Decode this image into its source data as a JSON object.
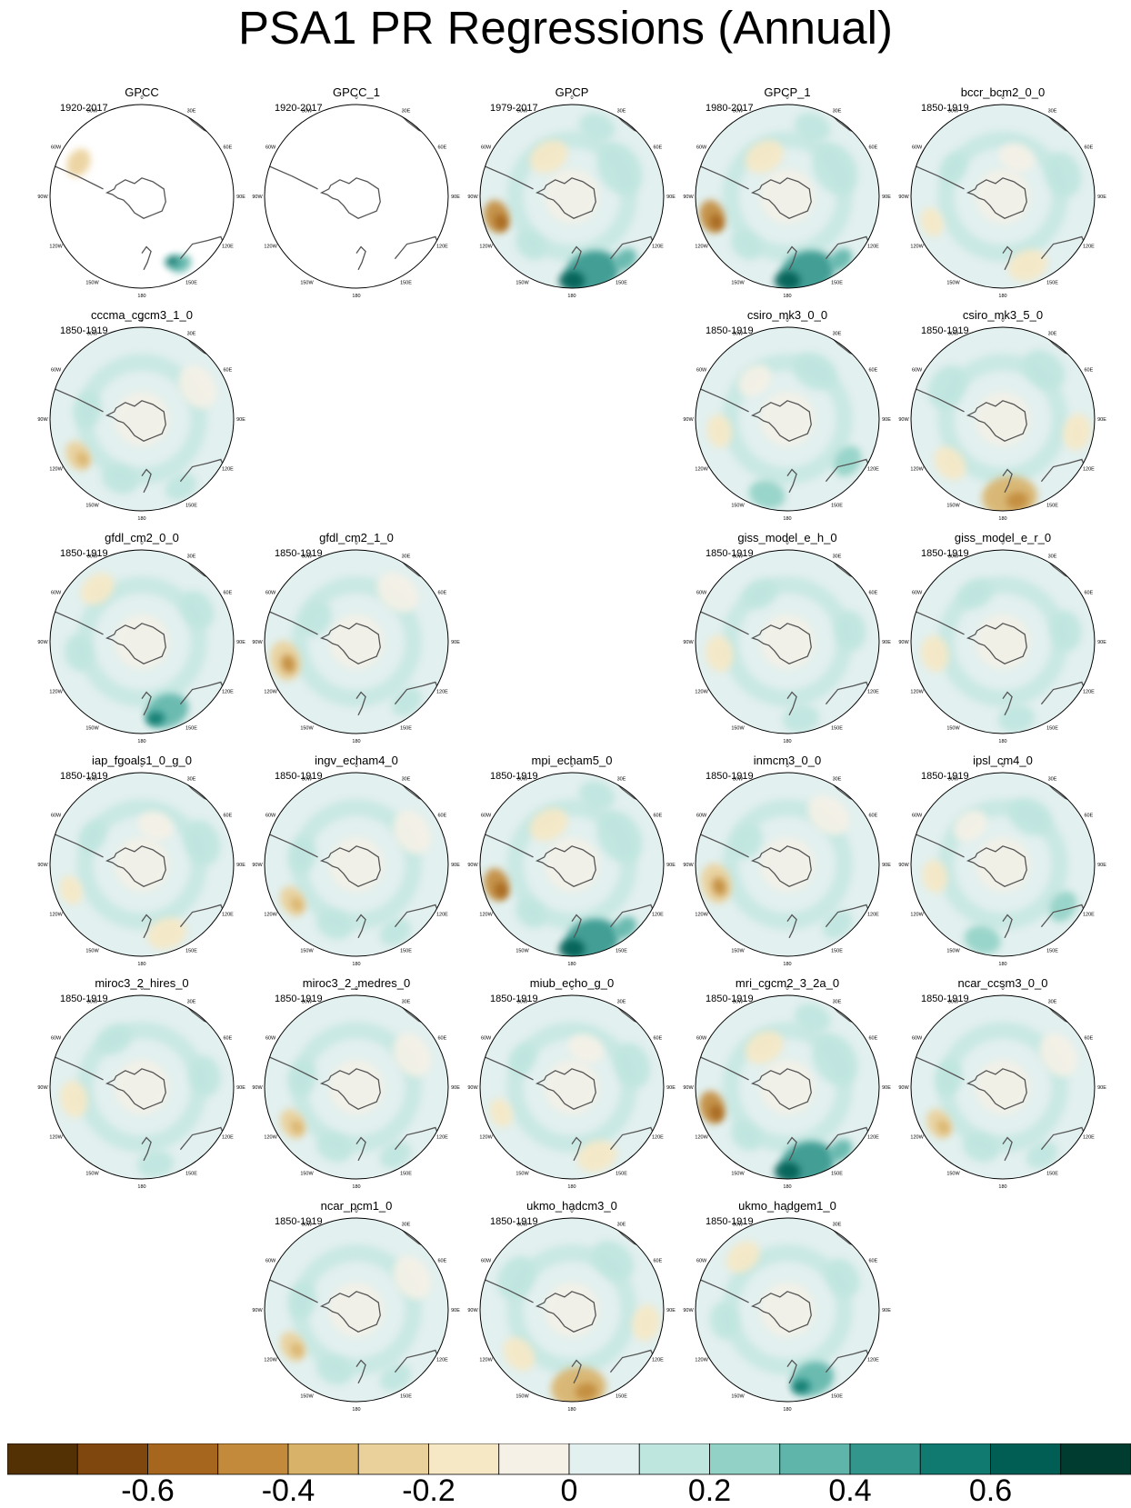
{
  "title": "PSA1 PR Regressions (Annual)",
  "chart_data": {
    "type": "heatmap",
    "title": "PSA1 PR Regressions (Annual)",
    "projection": "south-polar stereographic",
    "lon_labels": [
      "0",
      "30E",
      "60E",
      "90E",
      "120E",
      "150E",
      "180",
      "150W",
      "120W",
      "90W",
      "60W",
      "30W"
    ],
    "colorbar": {
      "ticks": [
        -0.6,
        -0.4,
        -0.2,
        0,
        0.2,
        0.4,
        0.6
      ],
      "tick_labels": [
        "-0.6",
        "-0.4",
        "-0.2",
        "0",
        "0.2",
        "0.4",
        "0.6"
      ],
      "range": [
        -0.8,
        0.8
      ],
      "colors": [
        "#543005",
        "#7f470e",
        "#a6661d",
        "#c28a3a",
        "#d9b26a",
        "#ead09a",
        "#f6e8c5",
        "#f5f1e6",
        "#e2f0ef",
        "#bfe5df",
        "#92d2c6",
        "#5fb5aa",
        "#32968c",
        "#117a70",
        "#005e55",
        "#003c30"
      ]
    },
    "panels": [
      {
        "name": "GPCC",
        "period": "1920-2017",
        "row": 0,
        "col": 0,
        "masked": true,
        "pattern": "gpcc"
      },
      {
        "name": "GPCC_1",
        "period": "1920-2017",
        "row": 0,
        "col": 1,
        "masked": true,
        "pattern": "none"
      },
      {
        "name": "GPCP",
        "period": "1979-2017",
        "row": 0,
        "col": 2,
        "masked": false,
        "pattern": "strong-psa"
      },
      {
        "name": "GPCP_1",
        "period": "1980-2017",
        "row": 0,
        "col": 3,
        "masked": false,
        "pattern": "strong-psa"
      },
      {
        "name": "bccr_bcm2_0_0",
        "period": "1850-1919",
        "row": 0,
        "col": 4,
        "masked": false,
        "pattern": "weak"
      },
      {
        "name": "cccma_cgcm3_1_0",
        "period": "1850-1919",
        "row": 1,
        "col": 0,
        "masked": false,
        "pattern": "weak-west"
      },
      {
        "name": "csiro_mk3_0_0",
        "period": "1850-1919",
        "row": 1,
        "col": 3,
        "masked": false,
        "pattern": "weak-south"
      },
      {
        "name": "csiro_mk3_5_0",
        "period": "1850-1919",
        "row": 1,
        "col": 4,
        "masked": false,
        "pattern": "dry-south"
      },
      {
        "name": "gfdl_cm2_0_0",
        "period": "1850-1919",
        "row": 2,
        "col": 0,
        "masked": false,
        "pattern": "wet-south"
      },
      {
        "name": "gfdl_cm2_1_0",
        "period": "1850-1919",
        "row": 2,
        "col": 1,
        "masked": false,
        "pattern": "dry-west"
      },
      {
        "name": "giss_model_e_h_0",
        "period": "1850-1919",
        "row": 2,
        "col": 3,
        "masked": false,
        "pattern": "faint"
      },
      {
        "name": "giss_model_e_r_0",
        "period": "1850-1919",
        "row": 2,
        "col": 4,
        "masked": false,
        "pattern": "faint"
      },
      {
        "name": "iap_fgoals1_0_g_0",
        "period": "1850-1919",
        "row": 3,
        "col": 0,
        "masked": false,
        "pattern": "weak"
      },
      {
        "name": "ingv_echam4_0",
        "period": "1850-1919",
        "row": 3,
        "col": 1,
        "masked": false,
        "pattern": "weak-west"
      },
      {
        "name": "mpi_echam5_0",
        "period": "1850-1919",
        "row": 3,
        "col": 2,
        "masked": false,
        "pattern": "strong-psa"
      },
      {
        "name": "inmcm3_0_0",
        "period": "1850-1919",
        "row": 3,
        "col": 3,
        "masked": false,
        "pattern": "dry-west"
      },
      {
        "name": "ipsl_cm4_0",
        "period": "1850-1919",
        "row": 3,
        "col": 4,
        "masked": false,
        "pattern": "weak-south"
      },
      {
        "name": "miroc3_2_hires_0",
        "period": "1850-1919",
        "row": 4,
        "col": 0,
        "masked": false,
        "pattern": "faint"
      },
      {
        "name": "miroc3_2_medres_0",
        "period": "1850-1919",
        "row": 4,
        "col": 1,
        "masked": false,
        "pattern": "weak-west"
      },
      {
        "name": "miub_echo_g_0",
        "period": "1850-1919",
        "row": 4,
        "col": 2,
        "masked": false,
        "pattern": "weak"
      },
      {
        "name": "mri_cgcm2_3_2a_0",
        "period": "1850-1919",
        "row": 4,
        "col": 3,
        "masked": false,
        "pattern": "strong-psa"
      },
      {
        "name": "ncar_ccsm3_0_0",
        "period": "1850-1919",
        "row": 4,
        "col": 4,
        "masked": false,
        "pattern": "weak-west"
      },
      {
        "name": "ncar_pcm1_0",
        "period": "1850-1919",
        "row": 5,
        "col": 1,
        "masked": false,
        "pattern": "weak-west"
      },
      {
        "name": "ukmo_hadcm3_0",
        "period": "1850-1919",
        "row": 5,
        "col": 2,
        "masked": false,
        "pattern": "dry-south"
      },
      {
        "name": "ukmo_hadgem1_0",
        "period": "1850-1919",
        "row": 5,
        "col": 3,
        "masked": false,
        "pattern": "wet-south"
      }
    ]
  }
}
